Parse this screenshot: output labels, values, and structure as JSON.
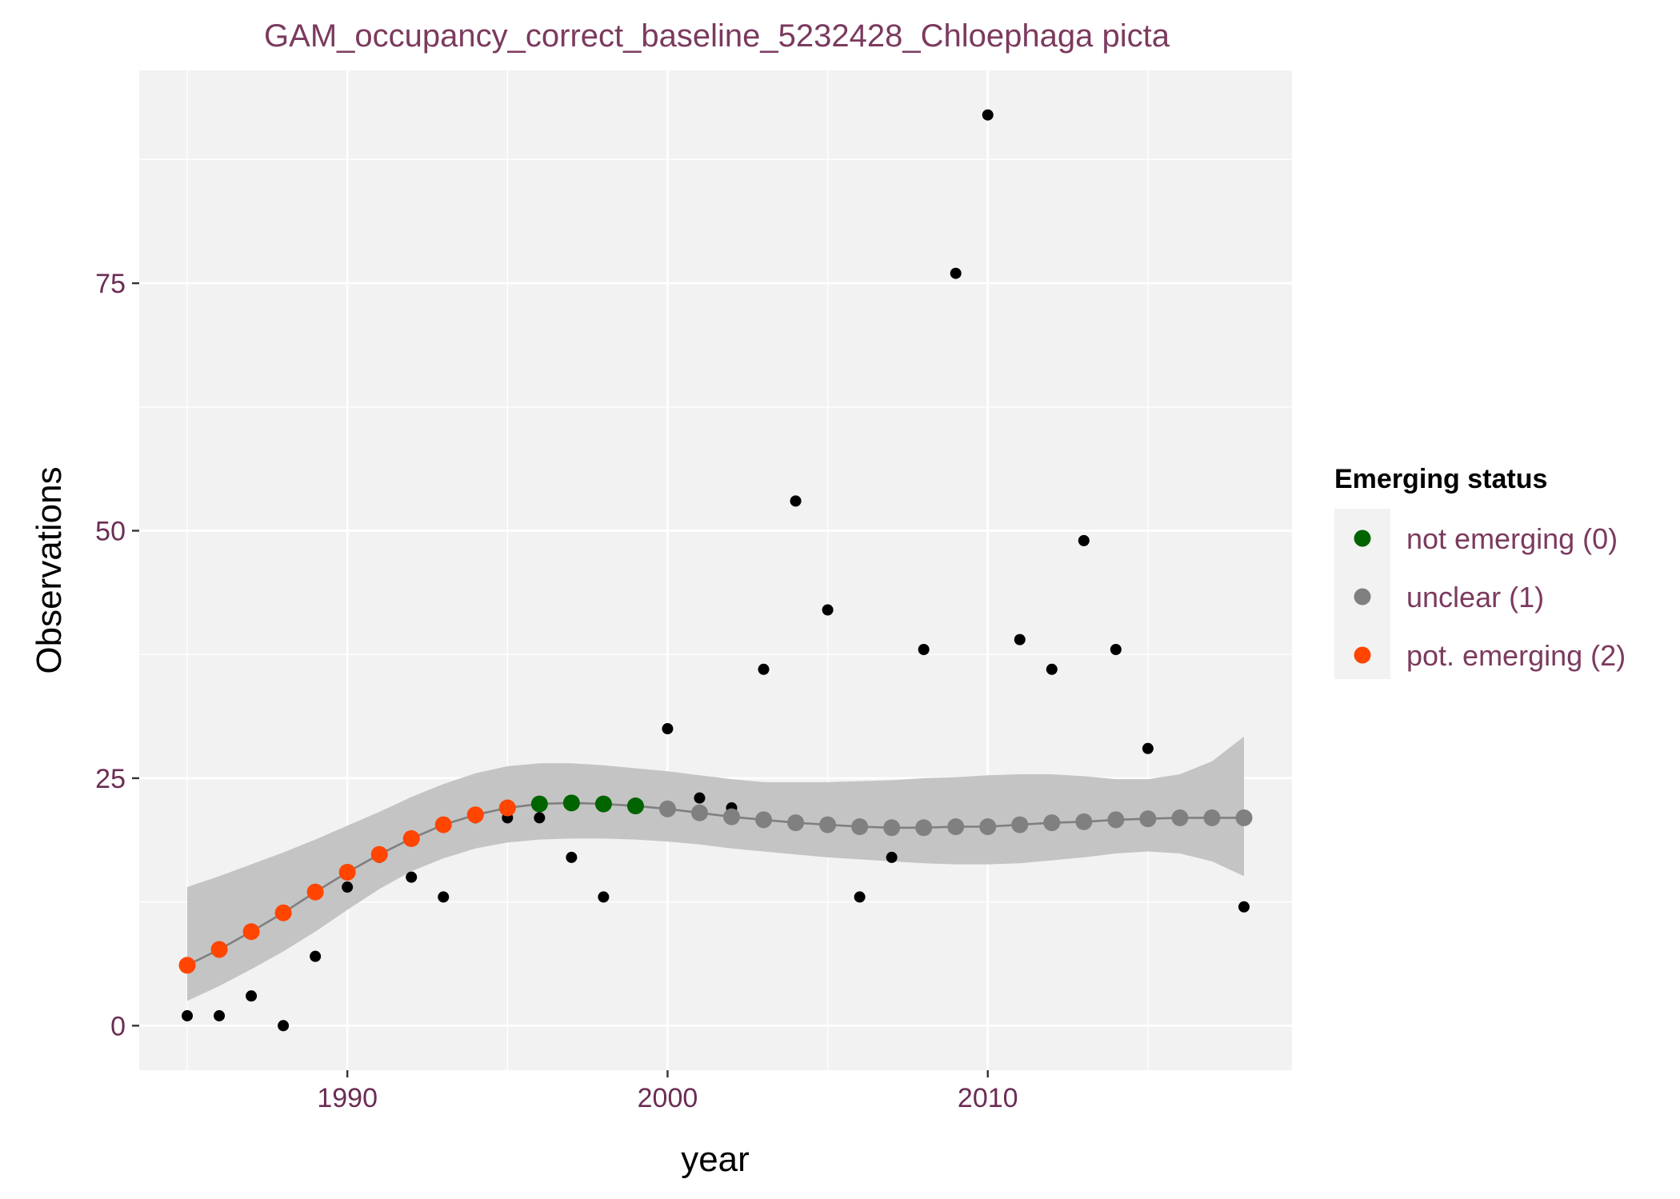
{
  "chart_data": {
    "type": "scatter",
    "title": "GAM_occupancy_correct_baseline_5232428_Chloephaga picta",
    "xlabel": "year",
    "ylabel": "Observations",
    "xlim": [
      1983.5,
      2019.5
    ],
    "ylim": [
      -4.5,
      96.5
    ],
    "x_ticks": [
      1990,
      2000,
      2010
    ],
    "x_tick_labels": [
      "1990",
      "2000",
      "2010"
    ],
    "y_ticks": [
      0,
      25,
      50,
      75
    ],
    "y_tick_labels": [
      "0",
      "25",
      "50",
      "75"
    ],
    "grid": true,
    "observations": {
      "x": [
        1985,
        1986,
        1987,
        1988,
        1989,
        1990,
        1991,
        1992,
        1993,
        1994,
        1995,
        1996,
        1997,
        1998,
        2000,
        2001,
        2002,
        2003,
        2004,
        2005,
        2006,
        2007,
        2008,
        2009,
        2010,
        2011,
        2012,
        2013,
        2014,
        2015,
        2018
      ],
      "y": [
        1,
        1,
        3,
        0,
        7,
        14,
        17,
        15,
        13,
        21,
        21,
        21,
        17,
        13,
        30,
        23,
        22,
        36,
        53,
        42,
        13,
        17,
        38,
        76,
        92,
        39,
        36,
        49,
        38,
        28,
        12
      ],
      "color": "#000000"
    },
    "fit": {
      "x": [
        1985,
        1986,
        1987,
        1988,
        1989,
        1990,
        1991,
        1992,
        1993,
        1994,
        1995,
        1996,
        1997,
        1998,
        1999,
        2000,
        2001,
        2002,
        2003,
        2004,
        2005,
        2006,
        2007,
        2008,
        2009,
        2010,
        2011,
        2012,
        2013,
        2014,
        2015,
        2016,
        2017,
        2018
      ],
      "y": [
        6.1,
        7.7,
        9.5,
        11.4,
        13.5,
        15.5,
        17.3,
        18.9,
        20.3,
        21.3,
        22.0,
        22.4,
        22.5,
        22.4,
        22.2,
        21.9,
        21.5,
        21.1,
        20.8,
        20.5,
        20.3,
        20.1,
        20.0,
        20.0,
        20.1,
        20.1,
        20.3,
        20.5,
        20.6,
        20.8,
        20.9,
        21.0,
        21.0,
        21.0
      ],
      "lower": [
        2.5,
        4.0,
        5.7,
        7.5,
        9.5,
        11.7,
        13.8,
        15.6,
        16.9,
        17.9,
        18.5,
        18.8,
        18.9,
        18.9,
        18.8,
        18.6,
        18.3,
        17.9,
        17.6,
        17.3,
        17.0,
        16.8,
        16.6,
        16.4,
        16.3,
        16.3,
        16.4,
        16.7,
        17.0,
        17.4,
        17.6,
        17.4,
        16.6,
        15.1
      ],
      "upper": [
        14.0,
        15.1,
        16.3,
        17.5,
        18.8,
        20.2,
        21.6,
        23.1,
        24.4,
        25.5,
        26.2,
        26.5,
        26.5,
        26.3,
        26.0,
        25.7,
        25.3,
        24.9,
        24.6,
        24.6,
        24.6,
        24.7,
        24.8,
        25.0,
        25.1,
        25.3,
        25.4,
        25.4,
        25.2,
        24.9,
        24.9,
        25.4,
        26.7,
        29.2
      ]
    },
    "status": [
      "pot. emerging (2)",
      "pot. emerging (2)",
      "pot. emerging (2)",
      "pot. emerging (2)",
      "pot. emerging (2)",
      "pot. emerging (2)",
      "pot. emerging (2)",
      "pot. emerging (2)",
      "pot. emerging (2)",
      "pot. emerging (2)",
      "pot. emerging (2)",
      "not emerging (0)",
      "not emerging (0)",
      "not emerging (0)",
      "not emerging (0)",
      "unclear (1)",
      "unclear (1)",
      "unclear (1)",
      "unclear (1)",
      "unclear (1)",
      "unclear (1)",
      "unclear (1)",
      "unclear (1)",
      "unclear (1)",
      "unclear (1)",
      "unclear (1)",
      "unclear (1)",
      "unclear (1)",
      "unclear (1)",
      "unclear (1)",
      "unclear (1)",
      "unclear (1)",
      "unclear (1)",
      "unclear (1)"
    ],
    "legend": {
      "title": "Emerging status",
      "placement": "right",
      "entries": [
        {
          "label": "not emerging (0)",
          "color": "#006400"
        },
        {
          "label": "unclear (1)",
          "color": "#808080"
        },
        {
          "label": "pot. emerging (2)",
          "color": "#ff4500"
        }
      ]
    },
    "colors": {
      "panel_background": "#f2f2f2",
      "gridline": "#ffffff",
      "ribbon": "#c4c4c4",
      "fit_line": "#7f7f7f",
      "axis_tick": "#333333"
    }
  }
}
